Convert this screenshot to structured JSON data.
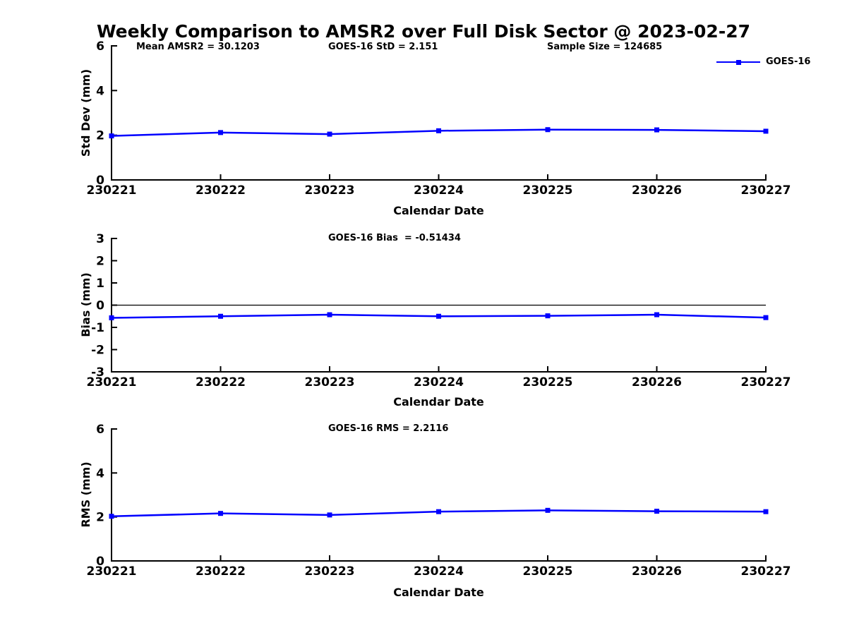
{
  "figure": {
    "title": "Weekly Comparison to AMSR2 over Full Disk Sector @ 2023-02-27"
  },
  "colors": {
    "series": "#0000ff",
    "axis": "#000000",
    "background": "#ffffff"
  },
  "legend": {
    "label": "GOES-16",
    "position": "top-right-of-first-subplot"
  },
  "chart_data": [
    {
      "type": "line",
      "name": "std-dev-subplot",
      "annotations": [
        {
          "text": "Mean AMSR2 = 30.1203"
        },
        {
          "text": "GOES-16 StD = 2.151"
        },
        {
          "text": "Sample Size = 124685"
        }
      ],
      "ylabel": "Std Dev (mm)",
      "xlabel": "Calendar Date",
      "categories": [
        "230221",
        "230222",
        "230223",
        "230224",
        "230225",
        "230226",
        "230227"
      ],
      "series": [
        {
          "name": "GOES-16",
          "values": [
            1.97,
            2.12,
            2.05,
            2.2,
            2.25,
            2.24,
            2.18
          ]
        }
      ],
      "ylim": [
        0,
        6
      ],
      "yticks": [
        0,
        2,
        4,
        6
      ],
      "zero_line": false,
      "grid": false,
      "legend_entries": [
        "GOES-16"
      ]
    },
    {
      "type": "line",
      "name": "bias-subplot",
      "title": "GOES-16 Bias  = -0.51434",
      "ylabel": "Bias (mm)",
      "xlabel": "Calendar Date",
      "categories": [
        "230221",
        "230222",
        "230223",
        "230224",
        "230225",
        "230226",
        "230227"
      ],
      "series": [
        {
          "name": "GOES-16",
          "values": [
            -0.57,
            -0.5,
            -0.43,
            -0.5,
            -0.48,
            -0.43,
            -0.56
          ]
        }
      ],
      "ylim": [
        -3,
        3
      ],
      "yticks": [
        -3,
        -2,
        -1,
        0,
        1,
        2,
        3
      ],
      "zero_line": true,
      "grid": false
    },
    {
      "type": "line",
      "name": "rms-subplot",
      "title": "GOES-16 RMS = 2.2116",
      "ylabel": "RMS (mm)",
      "xlabel": "Calendar Date",
      "categories": [
        "230221",
        "230222",
        "230223",
        "230224",
        "230225",
        "230226",
        "230227"
      ],
      "series": [
        {
          "name": "GOES-16",
          "values": [
            2.03,
            2.16,
            2.09,
            2.24,
            2.3,
            2.26,
            2.24
          ]
        }
      ],
      "ylim": [
        0,
        6
      ],
      "yticks": [
        0,
        2,
        4,
        6
      ],
      "zero_line": false,
      "grid": false
    }
  ]
}
